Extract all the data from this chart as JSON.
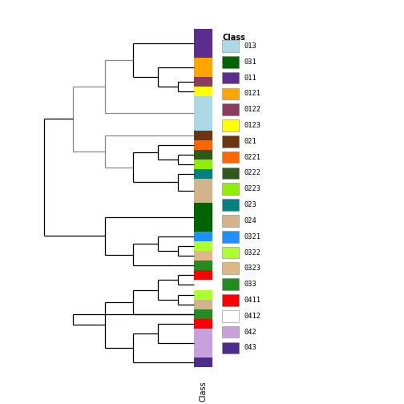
{
  "fig_width": 5.04,
  "fig_height": 5.04,
  "dpi": 100,
  "leaf_colors": [
    "#5B2D8E",
    "#FFA500",
    "#8B3A62",
    "#FFFF00",
    "#ADD8E6",
    "#6B3510",
    "#FF6600",
    "#2D5A1B",
    "#90EE00",
    "#008080",
    "#D2B48C",
    "#006400",
    "#1E90FF",
    "#ADFF2F",
    "#DEB887",
    "#228B22",
    "#FF0000",
    "#FFFFFF",
    "#ADFF2F",
    "#D2B48C",
    "#228B22",
    "#FF0000",
    "#C8A0DC",
    "#4B2D8E"
  ],
  "leaf_heights": [
    3.0,
    2.0,
    1.0,
    1.0,
    3.5,
    1.0,
    1.0,
    1.0,
    1.0,
    1.0,
    2.5,
    3.0,
    1.0,
    1.0,
    1.0,
    1.0,
    1.0,
    1.0,
    1.0,
    1.0,
    1.0,
    1.0,
    3.0,
    1.0
  ],
  "legend_labels": [
    "013",
    "031",
    "011",
    "0121",
    "0122",
    "0123",
    "021",
    "0221",
    "0222",
    "0223",
    "023",
    "024",
    "0321",
    "0322",
    "0323",
    "033",
    "0411",
    "0412",
    "042",
    "043"
  ],
  "legend_colors": [
    "#ADD8E6",
    "#006400",
    "#5B2D8E",
    "#FFA500",
    "#8B3A62",
    "#FFFF00",
    "#6B3510",
    "#FF6600",
    "#2D5A1B",
    "#90EE00",
    "#008080",
    "#D2B48C",
    "#1E90FF",
    "#ADFF2F",
    "#DEB887",
    "#228B22",
    "#FF0000",
    "#FFFFFF",
    "#C8A0DC",
    "#4B2D8E"
  ],
  "dendro_line_color": "#000000",
  "dendro_line_color_gray": "#888888"
}
